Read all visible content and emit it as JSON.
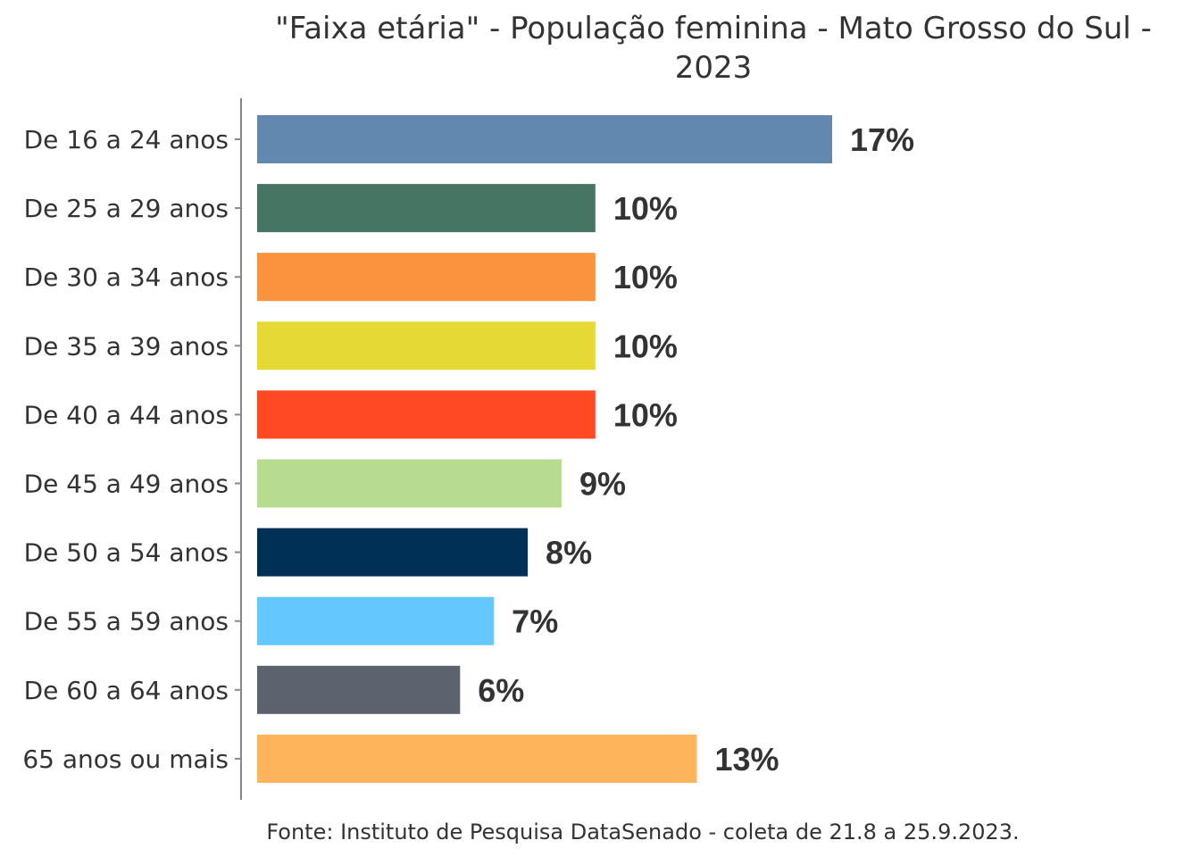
{
  "chart_data": {
    "type": "bar",
    "orientation": "horizontal",
    "title_lines": [
      "\"Faixa etária\" - População feminina - Mato Grosso do Sul -",
      "2023"
    ],
    "categories": [
      "De 16 a 24 anos",
      "De 25 a 29 anos",
      "De 30 a 34 anos",
      "De 35 a 39 anos",
      "De 40 a 44 anos",
      "De 45 a 49 anos",
      "De 50 a 54 anos",
      "De 55 a 59 anos",
      "De 60 a 64 anos",
      "65 anos ou mais"
    ],
    "values": [
      17,
      10,
      10,
      10,
      10,
      9,
      8,
      7,
      6,
      13
    ],
    "value_labels": [
      "17%",
      "10%",
      "10%",
      "10%",
      "10%",
      "9%",
      "8%",
      "7%",
      "6%",
      "13%"
    ],
    "colors": [
      "#6388B0",
      "#467564",
      "#FA933E",
      "#E4D935",
      "#FF4A24",
      "#B8DC8F",
      "#013056",
      "#64C8FF",
      "#5D636E",
      "#FDB45B"
    ],
    "xlim": [
      0,
      17
    ],
    "grid": false,
    "legend": "none",
    "caption": "Fonte: Instituto de Pesquisa DataSenado - coleta de 21.8 a 25.9.2023."
  }
}
